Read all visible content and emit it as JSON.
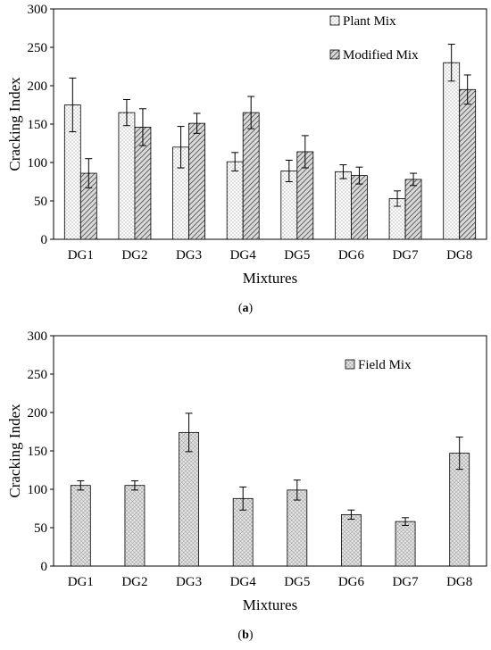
{
  "charts": [
    {
      "caption": "(a)",
      "chart_data": {
        "type": "bar",
        "title": "",
        "xlabel": "Mixtures",
        "ylabel": "Cracking Index",
        "ylim": [
          0,
          300
        ],
        "yticks": [
          0,
          50,
          100,
          150,
          200,
          250,
          300
        ],
        "grid": false,
        "legend_placement": "top-right",
        "categories": [
          "DG1",
          "DG2",
          "DG3",
          "DG4",
          "DG5",
          "DG6",
          "DG7",
          "DG8"
        ],
        "series": [
          {
            "name": "Plant Mix",
            "pattern": "dots",
            "values": [
              175,
              165,
              120,
              101,
              89,
              88,
              53,
              230
            ],
            "errors": [
              35,
              17,
              27,
              12,
              14,
              9,
              10,
              24
            ]
          },
          {
            "name": "Modified Mix",
            "pattern": "hatch",
            "values": [
              86,
              146,
              151,
              165,
              114,
              83,
              78,
              195
            ],
            "errors": [
              19,
              24,
              13,
              21,
              21,
              11,
              8,
              19
            ]
          }
        ]
      }
    },
    {
      "caption": "(b)",
      "chart_data": {
        "type": "bar",
        "title": "",
        "xlabel": "Mixtures",
        "ylabel": "Cracking Index",
        "ylim": [
          0,
          300
        ],
        "yticks": [
          0,
          50,
          100,
          150,
          200,
          250,
          300
        ],
        "grid": false,
        "legend_placement": "top-right",
        "categories": [
          "DG1",
          "DG2",
          "DG3",
          "DG4",
          "DG5",
          "DG6",
          "DG7",
          "DG8"
        ],
        "series": [
          {
            "name": "Field Mix",
            "pattern": "crosshatch",
            "values": [
              105,
              105,
              174,
              88,
              99,
              67,
              58,
              147
            ],
            "errors": [
              6,
              6,
              25,
              15,
              13,
              6,
              5,
              21
            ]
          }
        ]
      }
    }
  ]
}
